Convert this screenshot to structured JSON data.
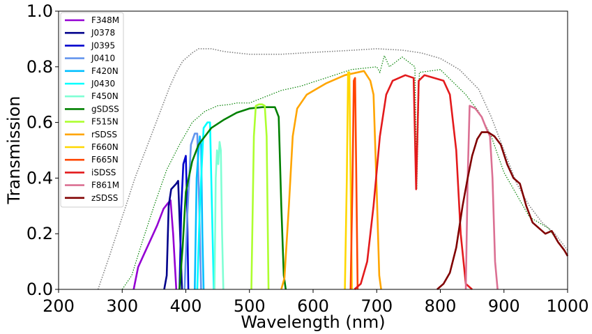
{
  "chart_data": {
    "type": "line",
    "title": "",
    "xlabel": "Wavelength (nm)",
    "ylabel": "Transmission",
    "xlim": [
      200,
      1000
    ],
    "ylim": [
      0.0,
      1.0
    ],
    "xticks": [
      "200",
      "300",
      "400",
      "500",
      "600",
      "700",
      "800",
      "900",
      "1000"
    ],
    "yticks": [
      "0.0",
      "0.2",
      "0.4",
      "0.6",
      "0.8",
      "1.0"
    ],
    "grid": false,
    "legend_position": "top-left",
    "reference_curves": [
      {
        "color": "#808080",
        "style": "dotted",
        "points": [
          [
            262,
            0.0
          ],
          [
            280,
            0.12
          ],
          [
            300,
            0.26
          ],
          [
            320,
            0.4
          ],
          [
            340,
            0.52
          ],
          [
            360,
            0.64
          ],
          [
            375,
            0.73
          ],
          [
            385,
            0.78
          ],
          [
            395,
            0.82
          ],
          [
            410,
            0.85
          ],
          [
            420,
            0.865
          ],
          [
            440,
            0.865
          ],
          [
            460,
            0.855
          ],
          [
            480,
            0.85
          ],
          [
            500,
            0.845
          ],
          [
            550,
            0.845
          ],
          [
            600,
            0.852
          ],
          [
            650,
            0.858
          ],
          [
            700,
            0.865
          ],
          [
            740,
            0.86
          ],
          [
            770,
            0.85
          ],
          [
            800,
            0.83
          ],
          [
            830,
            0.79
          ],
          [
            860,
            0.72
          ],
          [
            880,
            0.62
          ],
          [
            900,
            0.5
          ],
          [
            920,
            0.38
          ],
          [
            940,
            0.3
          ],
          [
            960,
            0.24
          ],
          [
            980,
            0.2
          ],
          [
            1000,
            0.14
          ]
        ]
      },
      {
        "color": "#008000",
        "style": "dotted",
        "points": [
          [
            300,
            0.0
          ],
          [
            315,
            0.05
          ],
          [
            330,
            0.16
          ],
          [
            350,
            0.3
          ],
          [
            370,
            0.43
          ],
          [
            390,
            0.52
          ],
          [
            410,
            0.6
          ],
          [
            430,
            0.64
          ],
          [
            450,
            0.66
          ],
          [
            470,
            0.665
          ],
          [
            480,
            0.67
          ],
          [
            500,
            0.67
          ],
          [
            550,
            0.715
          ],
          [
            560,
            0.72
          ],
          [
            580,
            0.73
          ],
          [
            600,
            0.745
          ],
          [
            620,
            0.76
          ],
          [
            640,
            0.775
          ],
          [
            660,
            0.79
          ],
          [
            680,
            0.795
          ],
          [
            700,
            0.8
          ],
          [
            705,
            0.78
          ],
          [
            712,
            0.84
          ],
          [
            720,
            0.8
          ],
          [
            740,
            0.835
          ],
          [
            760,
            0.8
          ],
          [
            763,
            0.36
          ],
          [
            767,
            0.78
          ],
          [
            800,
            0.79
          ],
          [
            840,
            0.7
          ],
          [
            860,
            0.64
          ],
          [
            880,
            0.55
          ],
          [
            900,
            0.42
          ],
          [
            940,
            0.26
          ],
          [
            970,
            0.22
          ],
          [
            1000,
            0.12
          ]
        ]
      }
    ],
    "series": [
      {
        "name": "F348M",
        "color": "#9400D3",
        "points": [
          [
            318,
            0
          ],
          [
            325,
            0.08
          ],
          [
            335,
            0.13
          ],
          [
            345,
            0.18
          ],
          [
            355,
            0.23
          ],
          [
            365,
            0.29
          ],
          [
            372,
            0.31
          ],
          [
            376,
            0.32
          ],
          [
            380,
            0.2
          ],
          [
            385,
            0
          ]
        ]
      },
      {
        "name": "J0378",
        "color": "#00008B",
        "points": [
          [
            366,
            0
          ],
          [
            370,
            0.05
          ],
          [
            373,
            0.3
          ],
          [
            377,
            0.36
          ],
          [
            381,
            0.37
          ],
          [
            385,
            0.38
          ],
          [
            388,
            0.39
          ],
          [
            391,
            0.2
          ],
          [
            394,
            0
          ]
        ]
      },
      {
        "name": "J0395",
        "color": "#0000CD",
        "points": [
          [
            390,
            0
          ],
          [
            393,
            0.3
          ],
          [
            396,
            0.45
          ],
          [
            400,
            0.48
          ],
          [
            402,
            0.3
          ],
          [
            404,
            0
          ]
        ]
      },
      {
        "name": "J0410",
        "color": "#6495ED",
        "points": [
          [
            398,
            0
          ],
          [
            402,
            0.25
          ],
          [
            408,
            0.52
          ],
          [
            414,
            0.56
          ],
          [
            418,
            0.56
          ],
          [
            421,
            0.3
          ],
          [
            424,
            0
          ]
        ]
      },
      {
        "name": "F420N",
        "color": "#00BFFF",
        "points": [
          [
            414,
            0
          ],
          [
            417,
            0.4
          ],
          [
            420,
            0.5
          ],
          [
            422,
            0.55
          ],
          [
            424,
            0.52
          ],
          [
            426,
            0.2
          ],
          [
            428,
            0
          ]
        ]
      },
      {
        "name": "J0430",
        "color": "#00FFFF",
        "points": [
          [
            418,
            0
          ],
          [
            422,
            0.3
          ],
          [
            428,
            0.58
          ],
          [
            434,
            0.6
          ],
          [
            438,
            0.6
          ],
          [
            441,
            0.3
          ],
          [
            444,
            0
          ]
        ]
      },
      {
        "name": "F450N",
        "color": "#7FFFD4",
        "points": [
          [
            445,
            0
          ],
          [
            447,
            0.4
          ],
          [
            449,
            0.5
          ],
          [
            451,
            0.45
          ],
          [
            453,
            0.53
          ],
          [
            455,
            0.5
          ],
          [
            457,
            0.2
          ],
          [
            459,
            0
          ]
        ]
      },
      {
        "name": "gSDSS",
        "color": "#008000",
        "points": [
          [
            390,
            0
          ],
          [
            395,
            0.15
          ],
          [
            400,
            0.35
          ],
          [
            410,
            0.46
          ],
          [
            420,
            0.52
          ],
          [
            430,
            0.55
          ],
          [
            440,
            0.58
          ],
          [
            460,
            0.61
          ],
          [
            480,
            0.635
          ],
          [
            500,
            0.65
          ],
          [
            520,
            0.655
          ],
          [
            540,
            0.655
          ],
          [
            546,
            0.62
          ],
          [
            550,
            0.3
          ],
          [
            554,
            0.05
          ],
          [
            557,
            0
          ]
        ]
      },
      {
        "name": "F515N",
        "color": "#ADFF2F",
        "points": [
          [
            503,
            0
          ],
          [
            507,
            0.55
          ],
          [
            510,
            0.66
          ],
          [
            515,
            0.665
          ],
          [
            520,
            0.665
          ],
          [
            524,
            0.66
          ],
          [
            527,
            0.55
          ],
          [
            530,
            0
          ]
        ]
      },
      {
        "name": "rSDSS",
        "color": "#FFA500",
        "points": [
          [
            550,
            0
          ],
          [
            555,
            0.04
          ],
          [
            562,
            0.3
          ],
          [
            568,
            0.55
          ],
          [
            575,
            0.65
          ],
          [
            590,
            0.7
          ],
          [
            620,
            0.74
          ],
          [
            650,
            0.77
          ],
          [
            670,
            0.78
          ],
          [
            680,
            0.785
          ],
          [
            690,
            0.75
          ],
          [
            695,
            0.7
          ],
          [
            700,
            0.35
          ],
          [
            704,
            0.05
          ],
          [
            707,
            0
          ]
        ]
      },
      {
        "name": "F660N",
        "color": "#FFD700",
        "points": [
          [
            650,
            0
          ],
          [
            653,
            0.4
          ],
          [
            655,
            0.78
          ],
          [
            657,
            0.78
          ],
          [
            659,
            0.4
          ],
          [
            661,
            0
          ]
        ]
      },
      {
        "name": "F665N",
        "color": "#FF4500",
        "points": [
          [
            659,
            0
          ],
          [
            662,
            0.4
          ],
          [
            664,
            0.75
          ],
          [
            666,
            0.76
          ],
          [
            668,
            0.4
          ],
          [
            670,
            0
          ]
        ]
      },
      {
        "name": "iSDSS",
        "color": "#E31A1C",
        "points": [
          [
            665,
            0
          ],
          [
            675,
            0.02
          ],
          [
            685,
            0.1
          ],
          [
            695,
            0.3
          ],
          [
            705,
            0.55
          ],
          [
            715,
            0.7
          ],
          [
            725,
            0.75
          ],
          [
            735,
            0.76
          ],
          [
            745,
            0.77
          ],
          [
            758,
            0.76
          ],
          [
            762,
            0.36
          ],
          [
            766,
            0.75
          ],
          [
            775,
            0.77
          ],
          [
            790,
            0.76
          ],
          [
            805,
            0.75
          ],
          [
            815,
            0.7
          ],
          [
            825,
            0.5
          ],
          [
            832,
            0.2
          ],
          [
            840,
            0.02
          ],
          [
            850,
            0
          ]
        ]
      },
      {
        "name": "F861M",
        "color": "#DB7093",
        "points": [
          [
            840,
            0
          ],
          [
            843,
            0.4
          ],
          [
            846,
            0.66
          ],
          [
            855,
            0.65
          ],
          [
            865,
            0.62
          ],
          [
            872,
            0.58
          ],
          [
            878,
            0.55
          ],
          [
            882,
            0.4
          ],
          [
            886,
            0.1
          ],
          [
            890,
            0
          ]
        ]
      },
      {
        "name": "zSDSS",
        "color": "#800000",
        "points": [
          [
            795,
            0
          ],
          [
            805,
            0.02
          ],
          [
            815,
            0.06
          ],
          [
            825,
            0.15
          ],
          [
            835,
            0.3
          ],
          [
            843,
            0.4
          ],
          [
            850,
            0.48
          ],
          [
            858,
            0.54
          ],
          [
            865,
            0.565
          ],
          [
            875,
            0.565
          ],
          [
            885,
            0.55
          ],
          [
            895,
            0.52
          ],
          [
            905,
            0.45
          ],
          [
            915,
            0.4
          ],
          [
            925,
            0.38
          ],
          [
            935,
            0.3
          ],
          [
            945,
            0.24
          ],
          [
            955,
            0.22
          ],
          [
            965,
            0.2
          ],
          [
            975,
            0.21
          ],
          [
            985,
            0.17
          ],
          [
            995,
            0.14
          ],
          [
            1000,
            0.12
          ]
        ]
      }
    ]
  }
}
